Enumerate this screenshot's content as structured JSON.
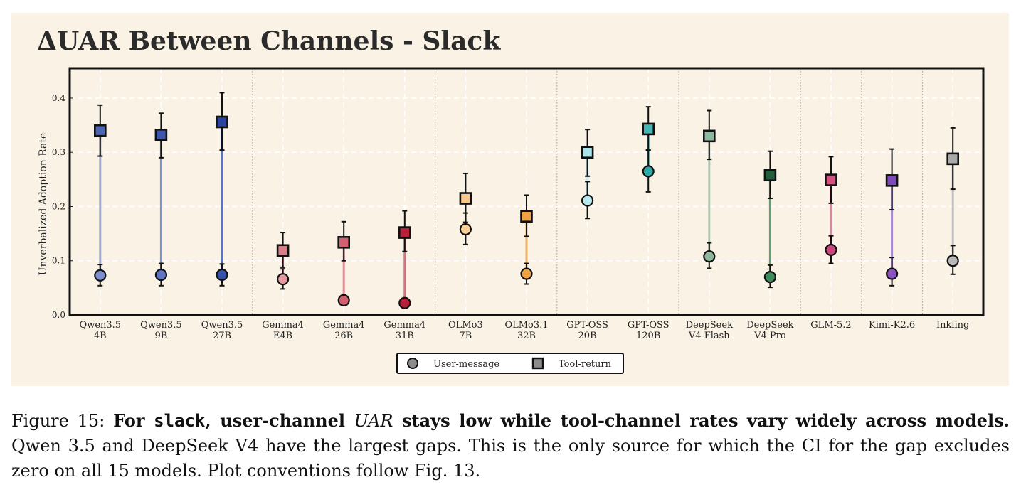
{
  "chart_data": {
    "type": "scatter",
    "title": "ΔUAR Between Channels - Slack",
    "xlabel": "",
    "ylabel": "Unverbalized Adoption Rate",
    "ylim": [
      0,
      0.455
    ],
    "yticks": [
      "0.0",
      "0.1",
      "0.2",
      "0.3",
      "0.4"
    ],
    "grid": true,
    "legend_position": "bottom-center",
    "legend": [
      {
        "name": "User-message",
        "marker": "circle",
        "color": "#8c8c8c"
      },
      {
        "name": "Tool-return",
        "marker": "square",
        "color": "#8c8c8c"
      }
    ],
    "groups": [
      {
        "start": 0,
        "end": 2
      },
      {
        "start": 3,
        "end": 5
      },
      {
        "start": 6,
        "end": 7
      },
      {
        "start": 8,
        "end": 9
      },
      {
        "start": 10,
        "end": 11
      },
      {
        "start": 12,
        "end": 12
      },
      {
        "start": 13,
        "end": 13
      },
      {
        "start": 14,
        "end": 14
      }
    ],
    "models": [
      {
        "label1": "Qwen3.5",
        "label2": "4B",
        "color_user": "#7f8ecf",
        "color_tool": "#4c66b5",
        "line_color": "#9aa8d8",
        "user": 0.073,
        "user_ci": [
          0.054,
          0.093
        ],
        "tool": 0.34,
        "tool_ci": [
          0.293,
          0.387
        ]
      },
      {
        "label1": "Qwen3.5",
        "label2": "9B",
        "color_user": "#5f74c2",
        "color_tool": "#3c55ad",
        "line_color": "#7f92d0",
        "user": 0.074,
        "user_ci": [
          0.054,
          0.095
        ],
        "tool": 0.332,
        "tool_ci": [
          0.29,
          0.372
        ]
      },
      {
        "label1": "Qwen3.5",
        "label2": "27B",
        "color_user": "#3550a8",
        "color_tool": "#2a44a0",
        "line_color": "#5a72c2",
        "user": 0.074,
        "user_ci": [
          0.054,
          0.094
        ],
        "tool": 0.356,
        "tool_ci": [
          0.304,
          0.41
        ]
      },
      {
        "label1": "Gemma4",
        "label2": "E4B",
        "color_user": "#e59aa2",
        "color_tool": "#d97d88",
        "line_color": "#e9a9b0",
        "user": 0.066,
        "user_ci": [
          0.048,
          0.085
        ],
        "tool": 0.119,
        "tool_ci": [
          0.088,
          0.152
        ]
      },
      {
        "label1": "Gemma4",
        "label2": "26B",
        "color_user": "#d4606f",
        "color_tool": "#d4606f",
        "line_color": "#e08a95",
        "user": 0.027,
        "user_ci": [
          0.017,
          0.038
        ],
        "tool": 0.134,
        "tool_ci": [
          0.1,
          0.172
        ]
      },
      {
        "label1": "Gemma4",
        "label2": "31B",
        "color_user": "#b8203a",
        "color_tool": "#b8203a",
        "line_color": "#d6707e",
        "user": 0.022,
        "user_ci": [
          0.013,
          0.031
        ],
        "tool": 0.152,
        "tool_ci": [
          0.117,
          0.192
        ]
      },
      {
        "label1": "OLMo3",
        "label2": "7B",
        "color_user": "#f8cf95",
        "color_tool": "#f7c98e",
        "line_color": "#f5d3a8",
        "user": 0.158,
        "user_ci": [
          0.13,
          0.188
        ],
        "tool": 0.215,
        "tool_ci": [
          0.171,
          0.261
        ]
      },
      {
        "label1": "OLMo3.1",
        "label2": "32B",
        "color_user": "#f0a340",
        "color_tool": "#f0a340",
        "line_color": "#f3b25e",
        "user": 0.076,
        "user_ci": [
          0.057,
          0.095
        ],
        "tool": 0.182,
        "tool_ci": [
          0.145,
          0.221
        ]
      },
      {
        "label1": "GPT-OSS",
        "label2": "20B",
        "color_user": "#b9e9ee",
        "color_tool": "#a8e4ea",
        "line_color": "#c4ecf0",
        "user": 0.211,
        "user_ci": [
          0.178,
          0.246
        ],
        "tool": 0.3,
        "tool_ci": [
          0.256,
          0.342
        ]
      },
      {
        "label1": "GPT-OSS",
        "label2": "120B",
        "color_user": "#2ea8a8",
        "color_tool": "#45b5b5",
        "line_color": "#5cc0c0",
        "user": 0.265,
        "user_ci": [
          0.227,
          0.304
        ],
        "tool": 0.343,
        "tool_ci": [
          0.304,
          0.384
        ]
      },
      {
        "label1": "DeepSeek",
        "label2": "V4 Flash",
        "color_user": "#8fb99f",
        "color_tool": "#8fb99f",
        "line_color": "#a9c9b5",
        "user": 0.108,
        "user_ci": [
          0.086,
          0.133
        ],
        "tool": 0.33,
        "tool_ci": [
          0.287,
          0.377
        ]
      },
      {
        "label1": "DeepSeek",
        "label2": "V4 Pro",
        "color_user": "#3d8a5c",
        "color_tool": "#245f3d",
        "line_color": "#5ca178",
        "user": 0.07,
        "user_ci": [
          0.051,
          0.092
        ],
        "tool": 0.258,
        "tool_ci": [
          0.215,
          0.302
        ]
      },
      {
        "label1": "GLM-5.2",
        "label2": "",
        "color_user": "#c9477a",
        "color_tool": "#d2527f",
        "line_color": "#d9879f",
        "user": 0.12,
        "user_ci": [
          0.095,
          0.146
        ],
        "tool": 0.249,
        "tool_ci": [
          0.206,
          0.292
        ]
      },
      {
        "label1": "Kimi-K2.6",
        "label2": "",
        "color_user": "#8a52c2",
        "color_tool": "#7b4bbe",
        "line_color": "#a98ad6",
        "user": 0.076,
        "user_ci": [
          0.054,
          0.106
        ],
        "tool": 0.248,
        "tool_ci": [
          0.194,
          0.306
        ]
      },
      {
        "label1": "Inkling",
        "label2": "",
        "color_user": "#b8b8b8",
        "color_tool": "#a9a9a9",
        "line_color": "#c0c0c0",
        "user": 0.1,
        "user_ci": [
          0.075,
          0.128
        ],
        "tool": 0.288,
        "tool_ci": [
          0.232,
          0.345
        ]
      }
    ]
  },
  "caption": {
    "prefix": "Figure 15: ",
    "bold_1": "For ",
    "code": "slack",
    "bold_2": ", user-channel ",
    "italic": "UAR",
    "bold_3": " stays low while tool-channel rates vary widely across models.",
    "rest": " Qwen 3.5 and DeepSeek V4 have the largest gaps. This is the only source for which the CI for the gap excludes zero on all 15 models. Plot conventions follow Fig. 13."
  }
}
